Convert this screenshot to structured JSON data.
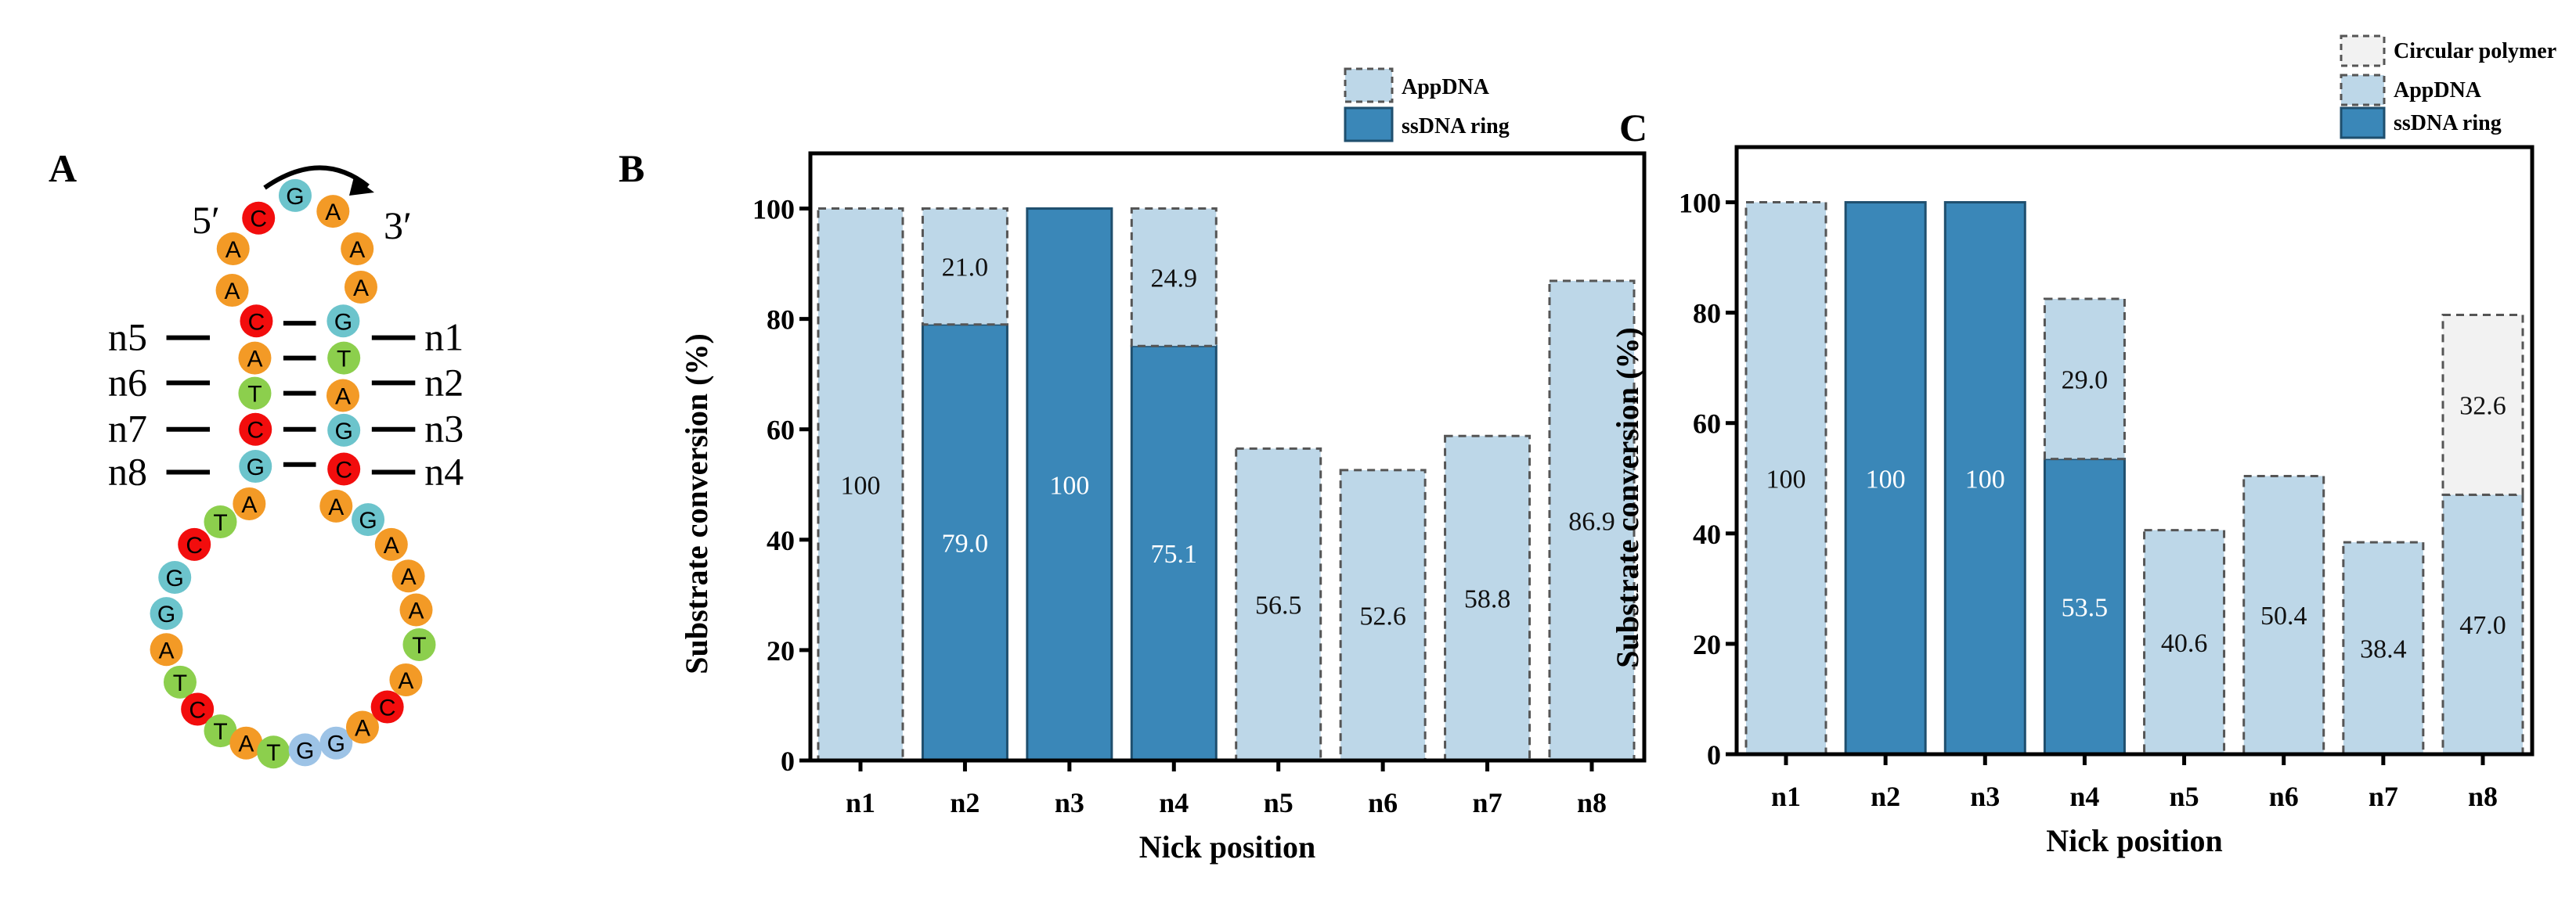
{
  "colors": {
    "ssDNA_ring": "#3a87b8",
    "AppDNA": "#bdd7e8",
    "Circular_polymer": "#f2f2f2",
    "base_A": "#f39a26",
    "base_C": "#f20d0d",
    "base_G": "#6cc4cc",
    "base_T": "#8ccf4d",
    "base_G_loop": "#9dc3e6"
  },
  "panel_a": {
    "letter": "A",
    "five_prime": "5′",
    "three_prime": "3′",
    "nick_labels_left": [
      "n5",
      "n6",
      "n7",
      "n8"
    ],
    "nick_labels_right": [
      "n1",
      "n2",
      "n3",
      "n4"
    ],
    "bases": [
      "C",
      "A",
      "A",
      "C",
      "A",
      "T",
      "C",
      "G",
      "A",
      "T",
      "C",
      "G",
      "G",
      "A",
      "T",
      "C",
      "T",
      "A",
      "T",
      "G",
      "G",
      "A",
      "C",
      "A",
      "T",
      "A",
      "A",
      "A",
      "G",
      "A",
      "C",
      "G",
      "A",
      "T",
      "G",
      "A",
      "A",
      "A",
      "G"
    ]
  },
  "chart_data": [
    {
      "panel_letter": "B",
      "type": "bar",
      "stacked": true,
      "categories": [
        "n1",
        "n2",
        "n3",
        "n4",
        "n5",
        "n6",
        "n7",
        "n8"
      ],
      "xlabel": "Nick position",
      "ylabel": "Substrate conversion (%)",
      "ylim": [
        0,
        110
      ],
      "yticks": [
        "0",
        "20",
        "40",
        "60",
        "80",
        "100"
      ],
      "legend_position": "top-right",
      "series": [
        {
          "name": "ssDNA ring",
          "color": "#3a87b8",
          "values": [
            0,
            79.0,
            100,
            75.1,
            0,
            0,
            0,
            0
          ],
          "labels": [
            "",
            "79.0",
            "100",
            "75.1",
            "",
            "",
            "",
            ""
          ]
        },
        {
          "name": "AppDNA",
          "color": "#bdd7e8",
          "values": [
            100,
            21.0,
            0,
            24.9,
            56.5,
            52.6,
            58.8,
            86.9
          ],
          "labels": [
            "100",
            "21.0",
            "",
            "24.9",
            "56.5",
            "52.6",
            "58.8",
            "86.9"
          ]
        }
      ]
    },
    {
      "panel_letter": "C",
      "type": "bar",
      "stacked": true,
      "categories": [
        "n1",
        "n2",
        "n3",
        "n4",
        "n5",
        "n6",
        "n7",
        "n8"
      ],
      "xlabel": "Nick position",
      "ylabel": "Substrate conversion (%)",
      "ylim": [
        0,
        110
      ],
      "yticks": [
        "0",
        "20",
        "40",
        "60",
        "80",
        "100"
      ],
      "legend_position": "top-right",
      "series": [
        {
          "name": "ssDNA ring",
          "color": "#3a87b8",
          "values": [
            0,
            100,
            100,
            53.5,
            0,
            0,
            0,
            0
          ],
          "labels": [
            "",
            "100",
            "100",
            "53.5",
            "",
            "",
            "",
            ""
          ]
        },
        {
          "name": "AppDNA",
          "color": "#bdd7e8",
          "values": [
            100,
            0,
            0,
            29.0,
            40.6,
            50.4,
            38.4,
            47.0
          ],
          "labels": [
            "100",
            "",
            "",
            "29.0",
            "40.6",
            "50.4",
            "38.4",
            "47.0"
          ]
        },
        {
          "name": "Circular polymer",
          "color": "#f2f2f2",
          "values": [
            0,
            0,
            0,
            0,
            0,
            0,
            0,
            32.6
          ],
          "labels": [
            "",
            "",
            "",
            "",
            "",
            "",
            "",
            "32.6"
          ]
        }
      ]
    }
  ]
}
